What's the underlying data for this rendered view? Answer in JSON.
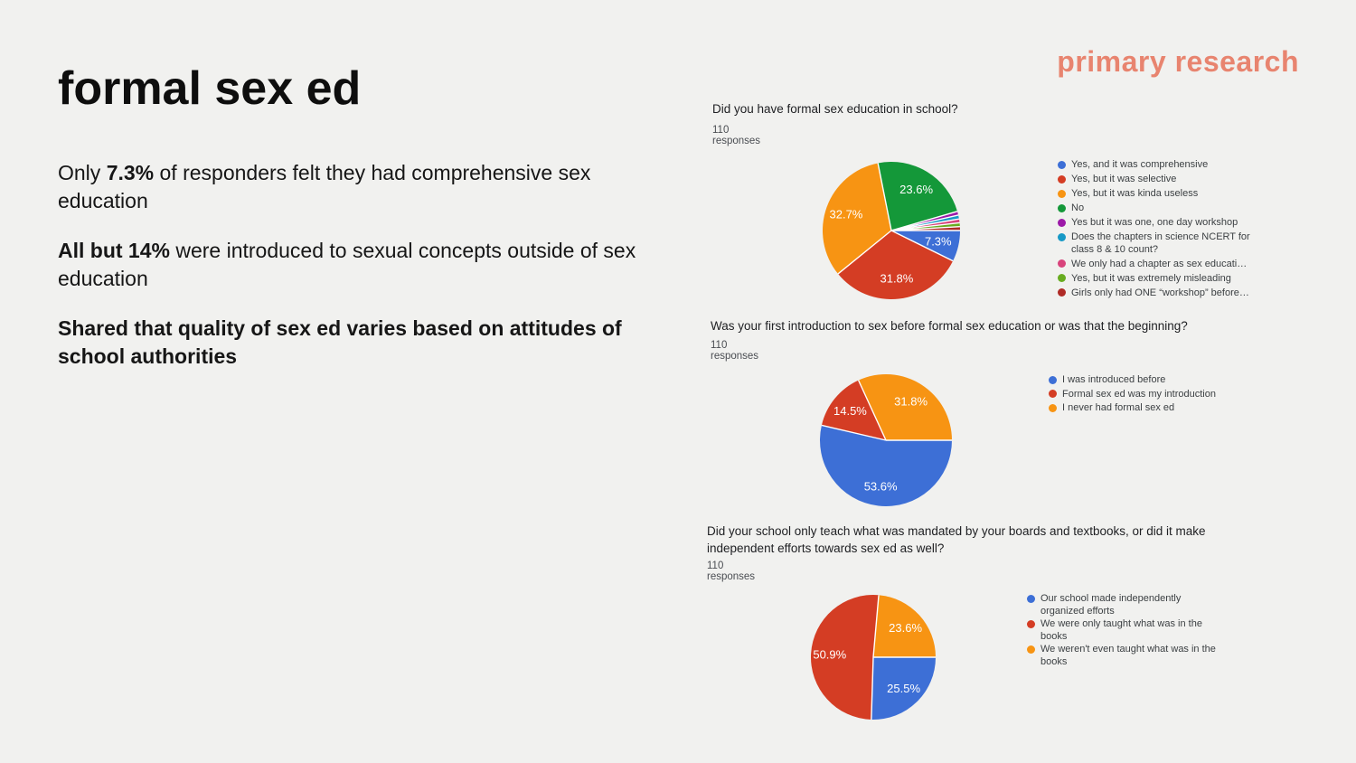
{
  "slide": {
    "title": "formal sex ed",
    "header_label": "primary research",
    "accent_color": "#E8846F",
    "background_color": "#F1F1EF",
    "paragraphs": [
      {
        "segments": [
          {
            "text": "Only ",
            "bold": false
          },
          {
            "text": "7.3%",
            "bold": true
          },
          {
            "text": " of responders felt they had comprehensive sex education",
            "bold": false
          }
        ]
      },
      {
        "segments": [
          {
            "text": "All but 14%",
            "bold": true
          },
          {
            "text": " were introduced to sexual concepts outside of sex education",
            "bold": false
          }
        ]
      },
      {
        "segments": [
          {
            "text": "Shared that quality of sex ed varies based on attitudes of school authorities",
            "bold": true
          }
        ]
      }
    ]
  },
  "chart_data": [
    {
      "type": "pie",
      "title": "Did you have formal sex education in school?",
      "subtitle": "110 responses",
      "legend_position": "right",
      "direction": "clockwise",
      "start_angle": "east",
      "slice_label_format": "percent_one_decimal",
      "slice_label_min_percent": 5,
      "slice_label_color": "#FFFFFF",
      "categories": [
        "Yes, and it was comprehensive",
        "Yes, but it was selective",
        "Yes, but it was kinda useless",
        "No",
        "Yes but it was one, one day workshop",
        "Does the chapters in science NCERT for class 8 & 10 count?",
        "We only had a chapter as sex educati…",
        "Yes, but it was extremely misleading",
        "Girls only had ONE “workshop” before…"
      ],
      "values": [
        7.3,
        31.8,
        32.7,
        23.6,
        0.9,
        0.9,
        0.9,
        0.9,
        0.9
      ],
      "colors": [
        "#3D6FD6",
        "#D43D24",
        "#F79413",
        "#149839",
        "#9C1AA8",
        "#1799C6",
        "#D8447C",
        "#68AC20",
        "#AF2B26"
      ]
    },
    {
      "type": "pie",
      "title": "Was your first introduction to sex before formal sex education or was that the beginning?",
      "subtitle": "110 responses",
      "legend_position": "right",
      "direction": "clockwise",
      "start_angle": "east",
      "slice_label_format": "percent_one_decimal",
      "slice_label_min_percent": 5,
      "slice_label_color": "#FFFFFF",
      "categories": [
        "I was introduced before",
        "Formal sex ed was my introduction",
        "I never had formal sex ed"
      ],
      "values": [
        53.6,
        14.5,
        31.8
      ],
      "colors": [
        "#3D6FD6",
        "#D43D24",
        "#F79413"
      ]
    },
    {
      "type": "pie",
      "title": "Did your school only teach what was mandated by your boards and textbooks, or did it make independent efforts towards sex ed as well?",
      "subtitle": "110 responses",
      "legend_position": "right",
      "direction": "clockwise",
      "start_angle": "east",
      "slice_label_format": "percent_one_decimal",
      "slice_label_min_percent": 5,
      "slice_label_color": "#FFFFFF",
      "categories": [
        "Our school made independently organized efforts",
        "We were only taught what was in the books",
        "We weren't even taught what was in the books"
      ],
      "values": [
        25.5,
        50.9,
        23.6
      ],
      "colors": [
        "#3D6FD6",
        "#D43D24",
        "#F79413"
      ]
    }
  ]
}
